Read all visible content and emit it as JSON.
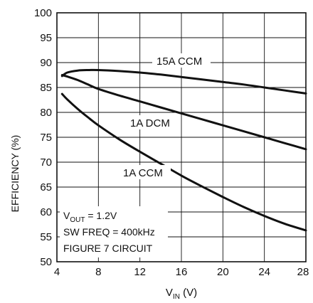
{
  "chart_data": {
    "type": "line",
    "xlabel": "V",
    "xlabel_sub": "IN",
    "xlabel_unit": " (V)",
    "ylabel": "EFFICIENCY (%)",
    "xlim": [
      4,
      28
    ],
    "ylim": [
      50,
      100
    ],
    "xticks": [
      4,
      8,
      12,
      16,
      20,
      24,
      28
    ],
    "yticks": [
      50,
      55,
      60,
      65,
      70,
      75,
      80,
      85,
      90,
      95,
      100
    ],
    "grid": true,
    "series": [
      {
        "name": "15A CCM",
        "x": [
          4.5,
          5,
          6,
          7,
          8,
          10,
          12,
          14,
          16,
          18,
          20,
          22,
          24,
          26,
          28
        ],
        "y": [
          87.3,
          88.0,
          88.4,
          88.5,
          88.5,
          88.3,
          88.0,
          87.6,
          87.1,
          86.6,
          86.1,
          85.6,
          85.0,
          84.4,
          83.8
        ]
      },
      {
        "name": "1A DCM",
        "x": [
          4.5,
          5,
          6,
          7,
          8,
          10,
          12,
          14,
          16,
          18,
          20,
          22,
          24,
          26,
          28
        ],
        "y": [
          87.5,
          87.2,
          86.5,
          85.6,
          84.7,
          83.4,
          82.2,
          81.0,
          79.8,
          78.6,
          77.4,
          76.2,
          75.0,
          73.8,
          72.6
        ]
      },
      {
        "name": "1A CCM",
        "x": [
          4.5,
          5,
          6,
          7,
          8,
          10,
          12,
          14,
          16,
          18,
          20,
          22,
          24,
          26,
          28
        ],
        "y": [
          83.7,
          82.6,
          80.7,
          79.0,
          77.4,
          74.6,
          72.1,
          69.7,
          67.3,
          65.1,
          63.0,
          61.0,
          59.2,
          57.6,
          56.3
        ]
      }
    ],
    "annotations": {
      "label_15a": "15A CCM",
      "label_1a_dcm": "1A DCM",
      "label_1a_ccm": "1A CCM",
      "cond_vout_prefix": "V",
      "cond_vout_sub": "OUT",
      "cond_vout_value": " = 1.2V",
      "cond_freq": "SW FREQ = 400kHz",
      "cond_circuit": "FIGURE 7 CIRCUIT"
    }
  }
}
